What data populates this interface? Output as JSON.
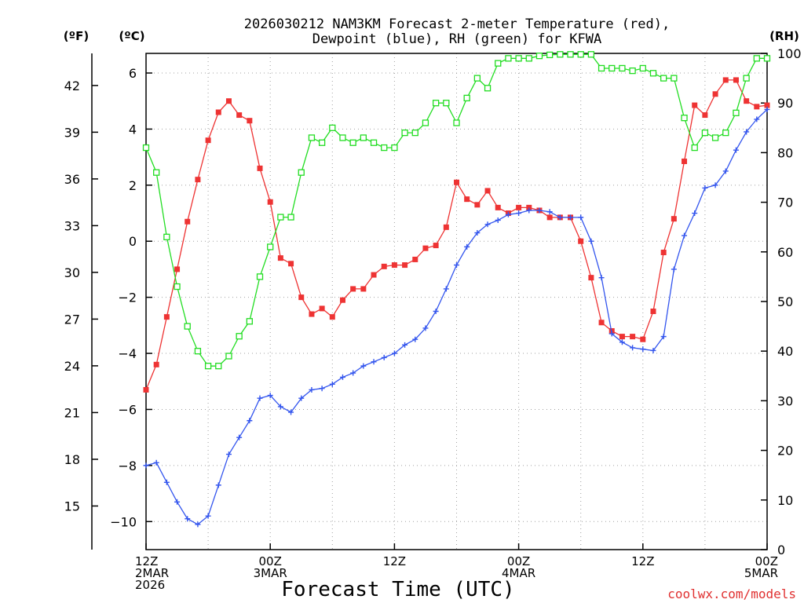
{
  "chart_data": {
    "type": "line",
    "title_line1": "2026030212 NAM3KM Forecast 2-meter Temperature (red),",
    "title_line2": "Dewpoint (blue), RH (green) for KFWA",
    "xlabel": "Forecast Time (UTC)",
    "unit_f": "(ºF)",
    "unit_c": "(ºC)",
    "unit_rh": "(RH)",
    "watermark": "coolwx.com/models",
    "x_range": [
      0,
      60
    ],
    "celsius_range": [
      -11,
      6.7
    ],
    "rh_range": [
      0,
      100
    ],
    "x_ticks": [
      {
        "x": 0,
        "lines": [
          "12Z",
          "2MAR",
          "2026"
        ]
      },
      {
        "x": 12,
        "lines": [
          "00Z",
          "3MAR"
        ]
      },
      {
        "x": 24,
        "lines": [
          "12Z"
        ]
      },
      {
        "x": 36,
        "lines": [
          "00Z",
          "4MAR"
        ]
      },
      {
        "x": 48,
        "lines": [
          "12Z"
        ]
      },
      {
        "x": 60,
        "lines": [
          "00Z",
          "5MAR"
        ]
      }
    ],
    "celsius_ticks": [
      -10,
      -8,
      -6,
      -4,
      -2,
      0,
      2,
      4,
      6
    ],
    "celsius_tick_labels": [
      "−10",
      "−8",
      "−6",
      "−4",
      "−2",
      "0",
      "2",
      "4",
      "6"
    ],
    "fahrenheit_ticks": [
      15,
      18,
      21,
      24,
      27,
      30,
      33,
      36,
      39,
      42
    ],
    "rh_ticks": [
      0,
      10,
      20,
      30,
      40,
      50,
      60,
      70,
      80,
      90,
      100
    ],
    "series": [
      {
        "name": "Temperature (°C)",
        "color": "#ee3333",
        "marker": "filled-square",
        "axis": "celsius",
        "x": [
          0,
          1,
          2,
          3,
          4,
          5,
          6,
          7,
          8,
          9,
          10,
          11,
          12,
          13,
          14,
          15,
          16,
          17,
          18,
          19,
          20,
          21,
          22,
          23,
          24,
          25,
          26,
          27,
          28,
          29,
          30,
          31,
          32,
          33,
          34,
          35,
          36,
          37,
          38,
          39,
          40,
          41,
          42,
          43,
          44,
          45,
          46,
          47,
          48,
          49,
          50,
          51,
          52,
          53,
          54,
          55,
          56,
          57,
          58,
          59,
          60
        ],
        "values": [
          -5.3,
          -4.4,
          -2.7,
          -1.0,
          0.7,
          2.2,
          3.6,
          4.6,
          5.0,
          4.5,
          4.3,
          2.6,
          1.4,
          -0.6,
          -0.8,
          -2.0,
          -2.6,
          -2.4,
          -2.7,
          -2.1,
          -1.7,
          -1.7,
          -1.2,
          -0.9,
          -0.85,
          -0.85,
          -0.65,
          -0.25,
          -0.15,
          0.5,
          2.1,
          1.5,
          1.3,
          1.8,
          1.2,
          1.0,
          1.2,
          1.2,
          1.1,
          0.85,
          0.85,
          0.85,
          0.0,
          -1.3,
          -2.9,
          -3.2,
          -3.4,
          -3.4,
          -3.5,
          -2.5,
          -0.4,
          0.8,
          2.85,
          4.85,
          4.5,
          5.25,
          5.75,
          5.75,
          5.0,
          4.8,
          4.85
        ]
      },
      {
        "name": "Dewpoint (°C)",
        "color": "#3355ee",
        "marker": "plus",
        "axis": "celsius",
        "x": [
          0,
          1,
          2,
          3,
          4,
          5,
          6,
          7,
          8,
          9,
          10,
          11,
          12,
          13,
          14,
          15,
          16,
          17,
          18,
          19,
          20,
          21,
          22,
          23,
          24,
          25,
          26,
          27,
          28,
          29,
          30,
          31,
          32,
          33,
          34,
          35,
          36,
          37,
          38,
          39,
          40,
          41,
          42,
          43,
          44,
          45,
          46,
          47,
          48,
          49,
          50,
          51,
          52,
          53,
          54,
          55,
          56,
          57,
          58,
          59,
          60
        ],
        "values": [
          -8.0,
          -7.9,
          -8.6,
          -9.3,
          -9.9,
          -10.1,
          -9.8,
          -8.7,
          -7.6,
          -7.0,
          -6.4,
          -5.6,
          -5.5,
          -5.9,
          -6.1,
          -5.6,
          -5.3,
          -5.25,
          -5.1,
          -4.85,
          -4.7,
          -4.45,
          -4.3,
          -4.15,
          -4.0,
          -3.7,
          -3.5,
          -3.1,
          -2.5,
          -1.7,
          -0.85,
          -0.2,
          0.3,
          0.6,
          0.75,
          0.95,
          1.0,
          1.1,
          1.1,
          1.05,
          0.85,
          0.85,
          0.85,
          0.0,
          -1.3,
          -3.3,
          -3.6,
          -3.8,
          -3.85,
          -3.9,
          -3.4,
          -1.0,
          0.2,
          1.0,
          1.9,
          2.0,
          2.5,
          3.25,
          3.9,
          4.35,
          4.7
        ]
      },
      {
        "name": "RH (%)",
        "color": "#22dd22",
        "marker": "open-square",
        "axis": "rh",
        "x": [
          0,
          1,
          2,
          3,
          4,
          5,
          6,
          7,
          8,
          9,
          10,
          11,
          12,
          13,
          14,
          15,
          16,
          17,
          18,
          19,
          20,
          21,
          22,
          23,
          24,
          25,
          26,
          27,
          28,
          29,
          30,
          31,
          32,
          33,
          34,
          35,
          36,
          37,
          38,
          39,
          40,
          41,
          42,
          43,
          44,
          45,
          46,
          47,
          48,
          49,
          50,
          51,
          52,
          53,
          54,
          55,
          56,
          57,
          58,
          59,
          60
        ],
        "values": [
          81,
          76,
          63,
          53,
          45,
          40,
          37,
          37,
          39,
          43,
          46,
          55,
          61,
          67,
          67,
          76,
          83,
          82,
          85,
          83,
          82,
          83,
          82,
          81,
          81,
          84,
          84,
          86,
          90,
          90,
          86,
          91,
          95,
          93,
          98,
          99,
          99,
          99,
          99.5,
          99.7,
          99.8,
          99.8,
          99.8,
          99.8,
          97,
          97,
          97,
          96.5,
          97,
          96,
          95,
          95,
          87,
          81,
          84,
          83,
          84,
          88,
          95,
          99,
          99
        ]
      }
    ]
  }
}
